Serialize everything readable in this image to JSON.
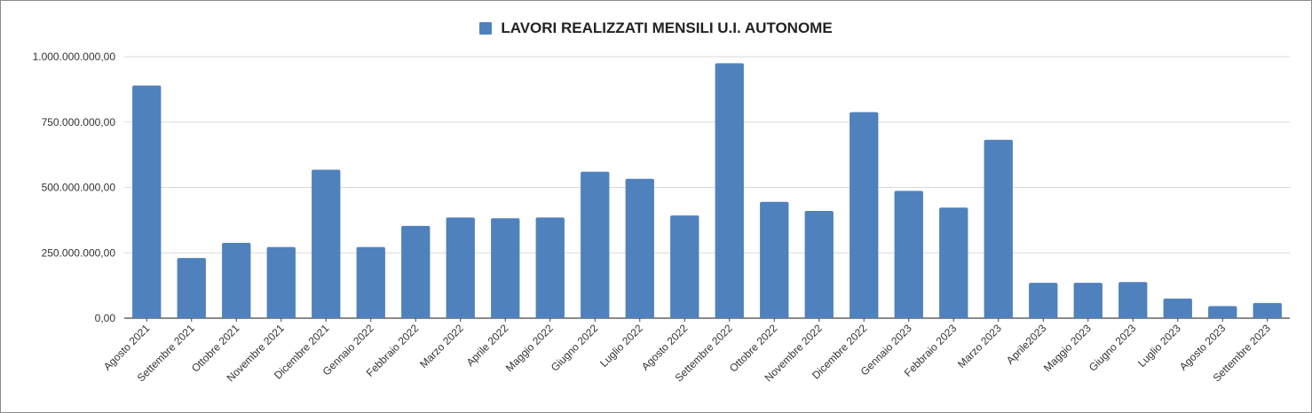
{
  "legend": {
    "label": "LAVORI REALIZZATI MENSILI  U.I. AUTONOME"
  },
  "colors": {
    "bar": "#4f81bd",
    "grid": "#d9d9d9",
    "axis": "#444444",
    "text": "#333333"
  },
  "chart_data": {
    "type": "bar",
    "ylim": [
      0,
      1000000000
    ],
    "yticks": [
      0,
      250000000,
      500000000,
      750000000,
      1000000000
    ],
    "ytick_labels": [
      "0,00",
      "250.000.000,00",
      "500.000.000,00",
      "750.000.000,00",
      "1.000.000.000,00"
    ],
    "grid": true,
    "legend_position": "top-center",
    "categories": [
      "Agosto 2021",
      "Settembre 2021",
      "Ottobre 2021",
      "Novembre 2021",
      "Dicembre 2021",
      "Gennaio 2022",
      "Febbraio 2022",
      "Marzo 2022",
      "Aprile 2022",
      "Maggio 2022",
      "Giugno 2022",
      "Luglio 2022",
      "Agosto 2022",
      "Settembre 2022",
      "Ottobre 2022",
      "Novembre 2022",
      "Dicembre 2022",
      "Gennaio 2023",
      "Febbraio 2023",
      "Marzo 2023",
      "Aprile2023",
      "Maggio 2023",
      "Giugno 2023",
      "Luglio 2023",
      "Agosto 2023",
      "Settembre 2023"
    ],
    "series": [
      {
        "name": "LAVORI REALIZZATI MENSILI  U.I. AUTONOME",
        "values": [
          890000000,
          230000000,
          288000000,
          272000000,
          568000000,
          272000000,
          353000000,
          385000000,
          382000000,
          385000000,
          560000000,
          533000000,
          393000000,
          975000000,
          445000000,
          410000000,
          788000000,
          487000000,
          423000000,
          682000000,
          135000000,
          135000000,
          138000000,
          75000000,
          46000000,
          58000000
        ]
      }
    ]
  }
}
